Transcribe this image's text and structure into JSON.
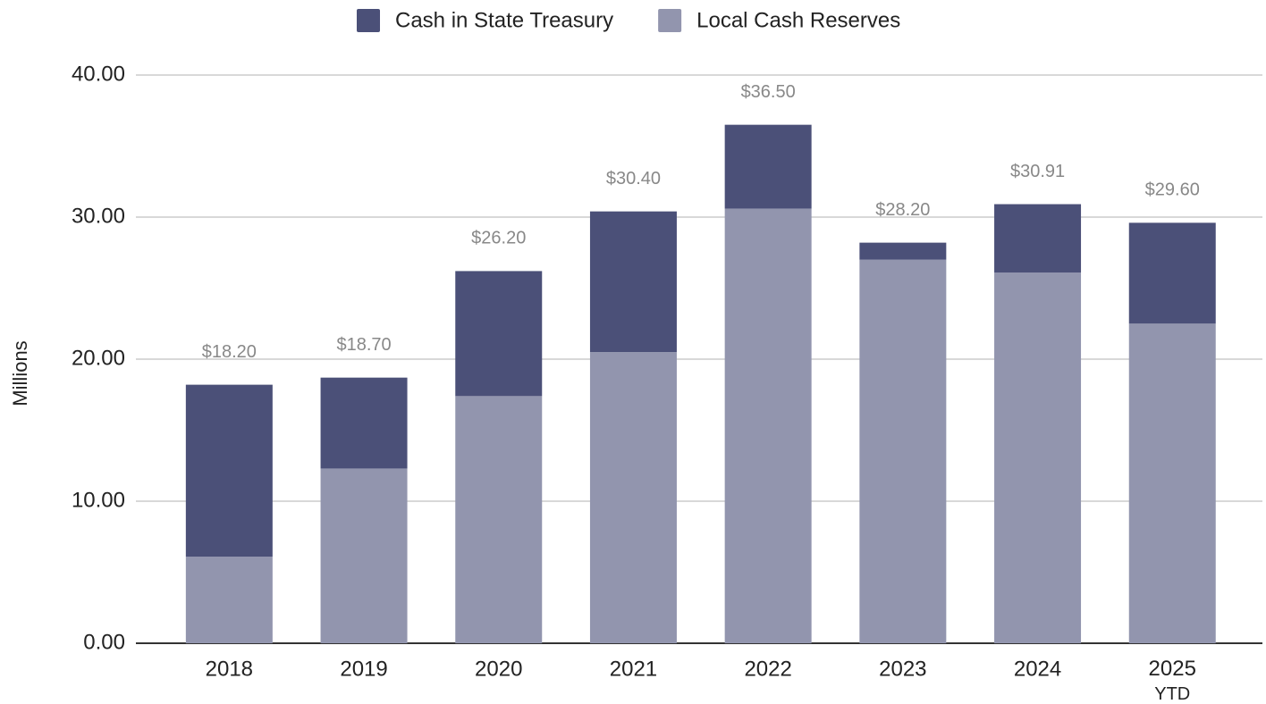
{
  "chart_data": {
    "type": "stacked_bar",
    "y_axis_label": "Millions",
    "categories": [
      "2018",
      "2019",
      "2020",
      "2021",
      "2022",
      "2023",
      "2024",
      "2025\nYTD"
    ],
    "series": [
      {
        "name": "Cash in State Treasury",
        "color": "#4b5078",
        "values": [
          12.1,
          6.4,
          8.8,
          9.9,
          5.9,
          1.2,
          4.81,
          7.1
        ]
      },
      {
        "name": "Local Cash Reserves",
        "color": "#9295ae",
        "values": [
          6.1,
          12.3,
          17.4,
          20.5,
          30.6,
          27.0,
          26.1,
          22.5
        ]
      }
    ],
    "totals": [
      18.2,
      18.7,
      26.2,
      30.4,
      36.5,
      28.2,
      30.91,
      29.6
    ],
    "total_labels": [
      "$18.20",
      "$18.70",
      "$26.20",
      "$30.40",
      "$36.50",
      "$28.20",
      "$30.91",
      "$29.60"
    ],
    "ylim": [
      0,
      40
    ],
    "yticks": [
      {
        "value": 0,
        "label": "0.00"
      },
      {
        "value": 10,
        "label": "10.00"
      },
      {
        "value": 20,
        "label": "20.00"
      },
      {
        "value": 30,
        "label": "30.00"
      },
      {
        "value": 40,
        "label": "40.00"
      }
    ],
    "grid": true,
    "legend": "top"
  }
}
